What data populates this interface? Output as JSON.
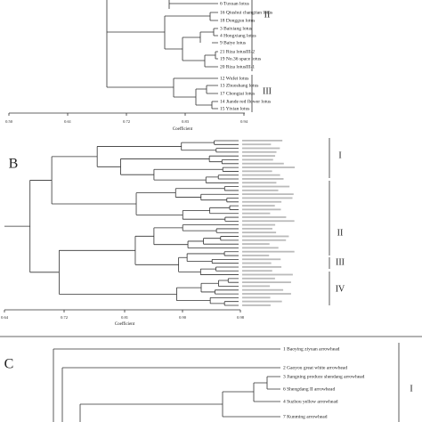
{
  "panels": [
    {
      "leaves": [
        "6 Tuxuan lotus",
        "16 Qiushui changtian lotus",
        "18 Dongguu lotus",
        "3 Baixiang lotus",
        "4 Hongxiang lotus",
        "9 Baiye lotus",
        "21 Riza lotusIII-2",
        "19 No.36 space lotus",
        "20 Riza lotusIII-1",
        "12 Wufei lotus",
        "13 Zhuoshang lotus",
        "17 Chongtai lotus",
        "14 Jiande red flower lotus",
        "15 Yixian lotus"
      ],
      "groups": [
        "II",
        "III"
      ],
      "ticks": [
        "0.50",
        "0.61",
        "0.72",
        "0.83",
        "0.94"
      ],
      "axis_title": "Coefficient"
    },
    {
      "label": "B",
      "groups": [
        "I",
        "II",
        "III",
        "IV"
      ],
      "ticks": [
        "0.64",
        "0.72",
        "0.81",
        "0.90",
        "0.98"
      ],
      "axis_title": "Coefficient"
    },
    {
      "label": "C",
      "leaves": [
        "1 Baoying ziyuan arrowhead",
        "2 Gaoyou great white arrowhead",
        "3 Jiangning produce shendang arrowhead",
        "6 Shengdang II arrowhead",
        "4 Suzhou yellow arrowhead",
        "7 Kunming arrowhead"
      ],
      "groups": [
        "I"
      ]
    }
  ]
}
